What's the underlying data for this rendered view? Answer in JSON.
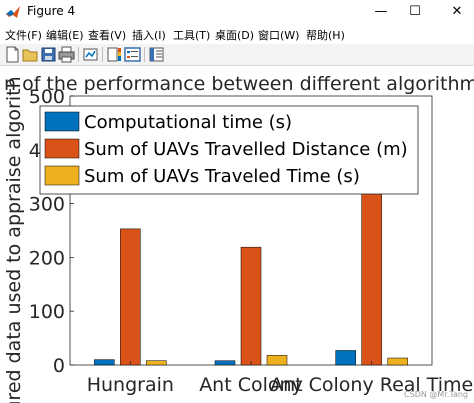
{
  "window": {
    "title": "Figure 4",
    "minimize": "—",
    "maximize": "☐",
    "close": "✕"
  },
  "menu": [
    {
      "label": "文件(F)"
    },
    {
      "label": "编辑(E)"
    },
    {
      "label": "查看(V)"
    },
    {
      "label": "插入(I)"
    },
    {
      "label": "工具(T)"
    },
    {
      "label": "桌面(D)"
    },
    {
      "label": "窗口(W)"
    },
    {
      "label": "帮助(H)"
    }
  ],
  "toolbar": {
    "icons": [
      "new-figure-icon",
      "open-file-icon",
      "save-icon",
      "print-icon",
      "link-plot-icon",
      "insert-colorbar-icon",
      "insert-legend-icon",
      "property-editor-icon"
    ]
  },
  "colors": {
    "series1": "#0072BD",
    "series2": "#D95319",
    "series3": "#EDB120"
  },
  "chart_data": {
    "type": "bar",
    "title": "n of the performance between different algorithms in",
    "ylabel": "ured data used to appraise algorith",
    "xlabel": "",
    "categories": [
      "Hungrain",
      "Ant Colony",
      "Ant Colony Real Time"
    ],
    "series": [
      {
        "name": "Computational time (s)",
        "values": [
          10,
          8,
          27
        ]
      },
      {
        "name": "Sum of UAVs Travelled Distance (m)",
        "values": [
          253,
          219,
          345
        ]
      },
      {
        "name": "Sum of UAVs Traveled Time (s)",
        "values": [
          8,
          18,
          13
        ]
      }
    ],
    "ylim": [
      0,
      500
    ],
    "yticks": [
      "0",
      "100",
      "200",
      "300",
      "400",
      "500"
    ],
    "grid": false,
    "legend_position": "top-left"
  },
  "watermark": "CSDN @Mr.Tang"
}
